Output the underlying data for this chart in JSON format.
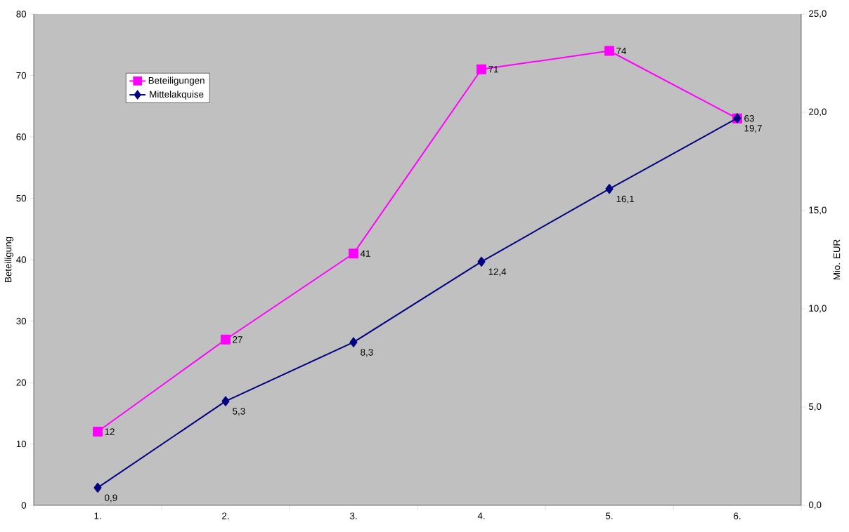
{
  "chart_data": {
    "type": "line",
    "categories": [
      "1.",
      "2.",
      "3.",
      "4.",
      "5.",
      "6."
    ],
    "ylabel": "Beteiligung",
    "y2label": "Mio. EUR",
    "ylim": [
      0,
      80
    ],
    "yticks": [
      0,
      10,
      20,
      30,
      40,
      50,
      60,
      70,
      80
    ],
    "y2lim": [
      0,
      25
    ],
    "y2ticks": [
      {
        "value": 0,
        "label": "0,0"
      },
      {
        "value": 5,
        "label": "5,0"
      },
      {
        "value": 10,
        "label": "10,0"
      },
      {
        "value": 15,
        "label": "15,0"
      },
      {
        "value": 20,
        "label": "20,0"
      },
      {
        "value": 25,
        "label": "25,0"
      }
    ],
    "series": [
      {
        "name": "Beteiligungen",
        "color": "#ff00ff",
        "marker": "square",
        "values": [
          12,
          27,
          41,
          71,
          74,
          63
        ],
        "value_labels": [
          "12",
          "27",
          "41",
          "71",
          "74",
          "63"
        ]
      },
      {
        "name": "Mittelakquise",
        "color": "#000080",
        "marker": "diamond",
        "axis": "y2",
        "values": [
          0.9,
          5.3,
          8.3,
          12.4,
          16.1,
          19.7
        ],
        "value_labels": [
          "0,9",
          "5,3",
          "8,3",
          "12,4",
          "16,1",
          "19,7"
        ]
      }
    ],
    "legend": "top left",
    "grid": false
  }
}
